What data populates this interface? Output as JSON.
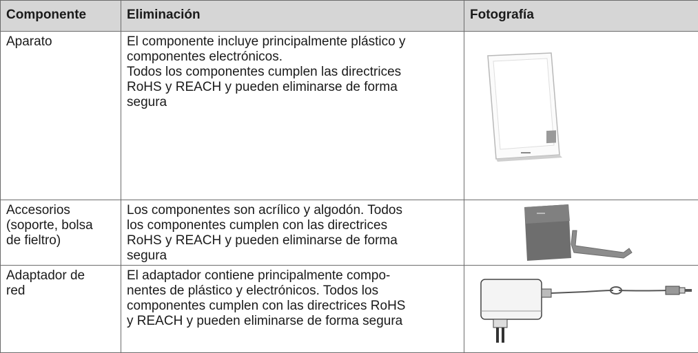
{
  "table": {
    "header": [
      "Componente",
      "Eliminación",
      "Fotografía"
    ],
    "rows": [
      [
        [
          "Aparato"
        ],
        [
          "El componente incluye principalmente plástico y",
          "componentes electrónicos.",
          "Todos los componentes cumplen las directrices",
          "RoHS y REACH y pueden eliminarse de forma",
          "segura"
        ]
      ],
      [
        [
          "Accesorios",
          "(soporte, bolsa",
          "de fieltro)"
        ],
        [
          "Los componentes son acrílico y algodón. Todos",
          "los componentes cumplen con las directrices",
          "RoHS y REACH y pueden eliminarse de forma",
          "segura"
        ]
      ],
      [
        [
          "Adaptador de",
          "red"
        ],
        [
          "El adaptador contiene principalmente compo-",
          "nentes de plástico y electrónicos. Todos los",
          "componentes cumplen con las directrices RoHS",
          "y REACH y pueden eliminarse de forma segura"
        ]
      ]
    ]
  }
}
